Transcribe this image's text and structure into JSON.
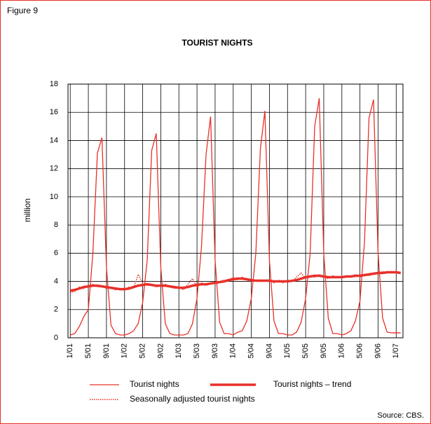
{
  "chart_data": {
    "type": "line",
    "figure_label": "Figure 9",
    "title": "TOURIST NIGHTS",
    "y_label": "million",
    "source": "Source: CBS.",
    "categories": [
      "1/01",
      null,
      null,
      null,
      "5/01",
      null,
      null,
      null,
      "9/01",
      null,
      null,
      null,
      "1/02",
      null,
      null,
      null,
      "5/02",
      null,
      null,
      null,
      "9/02",
      null,
      null,
      null,
      "1/03",
      null,
      null,
      null,
      "5/03",
      null,
      null,
      null,
      "9/03",
      null,
      null,
      null,
      "1/04",
      null,
      null,
      null,
      "5/04",
      null,
      null,
      null,
      "9/04",
      null,
      null,
      null,
      "1/05",
      null,
      null,
      null,
      "5/05",
      null,
      null,
      null,
      "9/05",
      null,
      null,
      null,
      "1/06",
      null,
      null,
      null,
      "5/06",
      null,
      null,
      null,
      "9/06",
      null,
      null,
      null,
      "1/07",
      null
    ],
    "series": [
      {
        "name": "Tourist nights",
        "color": "#e8312a",
        "style": "thin",
        "values": [
          0.2,
          0.3,
          0.8,
          1.5,
          2.0,
          6.0,
          13.1,
          14.2,
          5.0,
          0.9,
          0.3,
          0.2,
          0.2,
          0.3,
          0.5,
          1.0,
          2.5,
          5.5,
          13.3,
          14.5,
          5.0,
          1.0,
          0.3,
          0.2,
          0.2,
          0.2,
          0.3,
          1.0,
          2.8,
          6.5,
          13.0,
          15.7,
          5.5,
          1.1,
          0.3,
          0.3,
          0.2,
          0.4,
          0.5,
          1.2,
          2.8,
          6.0,
          13.4,
          16.1,
          5.5,
          1.2,
          0.3,
          0.3,
          0.2,
          0.2,
          0.4,
          1.1,
          2.8,
          6.0,
          15.0,
          17.0,
          6.0,
          1.4,
          0.3,
          0.3,
          0.2,
          0.3,
          0.5,
          1.2,
          2.6,
          6.8,
          15.6,
          16.9,
          6.0,
          1.4,
          0.4,
          0.35,
          0.35,
          0.35
        ]
      },
      {
        "name": "Tourist nights – trend",
        "color": "#e8312a",
        "style": "thick",
        "values": [
          3.35,
          3.4,
          3.5,
          3.6,
          3.65,
          3.7,
          3.7,
          3.65,
          3.6,
          3.55,
          3.5,
          3.45,
          3.45,
          3.5,
          3.6,
          3.7,
          3.75,
          3.8,
          3.75,
          3.7,
          3.7,
          3.7,
          3.65,
          3.6,
          3.55,
          3.55,
          3.6,
          3.7,
          3.75,
          3.8,
          3.8,
          3.85,
          3.9,
          3.95,
          4.0,
          4.1,
          4.15,
          4.2,
          4.2,
          4.15,
          4.1,
          4.05,
          4.05,
          4.05,
          4.05,
          4.0,
          4.0,
          4.0,
          4.0,
          4.05,
          4.1,
          4.2,
          4.3,
          4.35,
          4.4,
          4.4,
          4.35,
          4.3,
          4.3,
          4.3,
          4.3,
          4.35,
          4.35,
          4.4,
          4.4,
          4.45,
          4.5,
          4.55,
          4.6,
          4.6,
          4.65,
          4.65,
          4.65,
          4.6
        ]
      },
      {
        "name": "Seasonally adjusted tourist nights",
        "color": "#e8312a",
        "style": "dotted",
        "values": [
          3.2,
          3.3,
          3.6,
          3.5,
          3.7,
          3.8,
          3.6,
          3.7,
          3.5,
          3.6,
          3.4,
          3.5,
          3.4,
          3.6,
          3.5,
          4.5,
          3.9,
          3.7,
          3.8,
          3.6,
          3.7,
          3.8,
          3.6,
          3.5,
          3.6,
          3.4,
          3.8,
          4.2,
          3.6,
          3.9,
          3.7,
          3.9,
          3.9,
          4.0,
          4.1,
          4.0,
          4.3,
          4.1,
          4.3,
          4.1,
          4.0,
          4.1,
          4.0,
          4.1,
          4.1,
          3.9,
          4.1,
          3.9,
          4.1,
          4.0,
          4.3,
          4.6,
          4.2,
          4.4,
          4.3,
          4.5,
          4.3,
          4.2,
          4.4,
          4.3,
          4.3,
          4.4,
          4.3,
          4.5,
          4.3,
          4.5,
          4.4,
          4.6,
          4.6,
          4.7,
          4.6,
          4.7,
          4.6,
          4.6
        ]
      }
    ],
    "ylim": [
      0,
      18
    ],
    "yticks": [
      0,
      2,
      4,
      6,
      8,
      10,
      12,
      14,
      16,
      18
    ],
    "grid": true
  }
}
